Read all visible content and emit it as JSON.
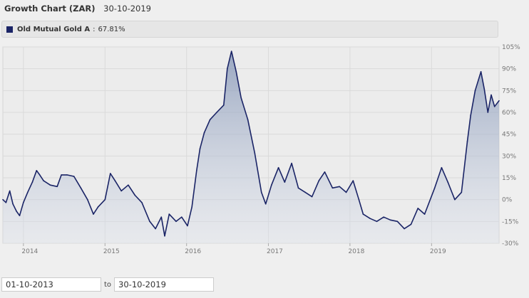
{
  "header": {
    "title": "Growth Chart (ZAR)",
    "date": "30-10-2019"
  },
  "legend": {
    "name": "Old Mutual Gold A",
    "separator": ":",
    "value": "67.81%",
    "color": "#1a2466"
  },
  "range": {
    "from": "01-10-2013",
    "to_label": "to",
    "to": "30-10-2019"
  },
  "chart_data": {
    "type": "area",
    "series": [
      {
        "name": "Old Mutual Gold A",
        "color": "#1a2466"
      }
    ],
    "x_ticks": [
      "2014",
      "2015",
      "2016",
      "2017",
      "2018",
      "2019"
    ],
    "y_ticks": [
      "105%",
      "90%",
      "75%",
      "60%",
      "45%",
      "30%",
      "15%",
      "0%",
      "-15%",
      "-30%"
    ],
    "ylim": [
      -30,
      105
    ],
    "xlim": [
      "2013-10-01",
      "2019-10-30"
    ],
    "grid": true,
    "points": [
      [
        "2013-10-01",
        0
      ],
      [
        "2013-10-15",
        -2
      ],
      [
        "2013-11-01",
        6
      ],
      [
        "2013-11-15",
        -3
      ],
      [
        "2013-12-01",
        -8
      ],
      [
        "2013-12-15",
        -11
      ],
      [
        "2014-01-01",
        -2
      ],
      [
        "2014-01-20",
        5
      ],
      [
        "2014-02-10",
        12
      ],
      [
        "2014-03-01",
        20
      ],
      [
        "2014-03-15",
        17
      ],
      [
        "2014-04-01",
        13
      ],
      [
        "2014-05-01",
        10
      ],
      [
        "2014-06-01",
        9
      ],
      [
        "2014-06-20",
        17
      ],
      [
        "2014-07-15",
        17
      ],
      [
        "2014-08-15",
        16
      ],
      [
        "2014-09-15",
        8
      ],
      [
        "2014-10-15",
        0
      ],
      [
        "2014-11-10",
        -10
      ],
      [
        "2014-12-01",
        -5
      ],
      [
        "2015-01-01",
        0
      ],
      [
        "2015-01-25",
        18
      ],
      [
        "2015-02-15",
        13
      ],
      [
        "2015-03-15",
        6
      ],
      [
        "2015-04-15",
        10
      ],
      [
        "2015-05-15",
        3
      ],
      [
        "2015-06-15",
        -2
      ],
      [
        "2015-07-20",
        -15
      ],
      [
        "2015-08-15",
        -20
      ],
      [
        "2015-09-10",
        -12
      ],
      [
        "2015-09-25",
        -25
      ],
      [
        "2015-10-15",
        -10
      ],
      [
        "2015-11-15",
        -15
      ],
      [
        "2015-12-10",
        -12
      ],
      [
        "2016-01-05",
        -18
      ],
      [
        "2016-01-25",
        -5
      ],
      [
        "2016-02-15",
        20
      ],
      [
        "2016-03-01",
        35
      ],
      [
        "2016-03-20",
        46
      ],
      [
        "2016-04-15",
        55
      ],
      [
        "2016-05-15",
        60
      ],
      [
        "2016-06-15",
        65
      ],
      [
        "2016-07-01",
        90
      ],
      [
        "2016-07-20",
        102
      ],
      [
        "2016-08-10",
        88
      ],
      [
        "2016-09-01",
        70
      ],
      [
        "2016-10-01",
        55
      ],
      [
        "2016-11-01",
        32
      ],
      [
        "2016-12-01",
        5
      ],
      [
        "2016-12-20",
        -3
      ],
      [
        "2017-01-15",
        10
      ],
      [
        "2017-02-15",
        22
      ],
      [
        "2017-03-15",
        12
      ],
      [
        "2017-04-15",
        25
      ],
      [
        "2017-05-15",
        8
      ],
      [
        "2017-06-15",
        5
      ],
      [
        "2017-07-15",
        2
      ],
      [
        "2017-08-15",
        13
      ],
      [
        "2017-09-10",
        19
      ],
      [
        "2017-10-15",
        8
      ],
      [
        "2017-11-15",
        9
      ],
      [
        "2017-12-15",
        5
      ],
      [
        "2018-01-15",
        13
      ],
      [
        "2018-02-10",
        0
      ],
      [
        "2018-03-01",
        -10
      ],
      [
        "2018-04-01",
        -13
      ],
      [
        "2018-05-01",
        -15
      ],
      [
        "2018-06-01",
        -12
      ],
      [
        "2018-07-01",
        -14
      ],
      [
        "2018-08-01",
        -15
      ],
      [
        "2018-09-01",
        -20
      ],
      [
        "2018-10-01",
        -17
      ],
      [
        "2018-11-01",
        -6
      ],
      [
        "2018-12-01",
        -10
      ],
      [
        "2019-01-15",
        8
      ],
      [
        "2019-02-15",
        22
      ],
      [
        "2019-03-15",
        12
      ],
      [
        "2019-04-15",
        0
      ],
      [
        "2019-05-15",
        5
      ],
      [
        "2019-06-10",
        40
      ],
      [
        "2019-06-25",
        58
      ],
      [
        "2019-07-15",
        75
      ],
      [
        "2019-08-10",
        88
      ],
      [
        "2019-08-25",
        76
      ],
      [
        "2019-09-10",
        60
      ],
      [
        "2019-09-25",
        72
      ],
      [
        "2019-10-10",
        64
      ],
      [
        "2019-10-30",
        68
      ]
    ]
  }
}
